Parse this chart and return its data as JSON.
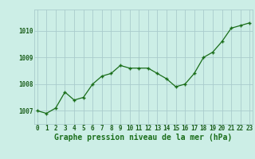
{
  "x": [
    0,
    1,
    2,
    3,
    4,
    5,
    6,
    7,
    8,
    9,
    10,
    11,
    12,
    13,
    14,
    15,
    16,
    17,
    18,
    19,
    20,
    21,
    22,
    23
  ],
  "y": [
    1007.0,
    1006.9,
    1007.1,
    1007.7,
    1007.4,
    1007.5,
    1008.0,
    1008.3,
    1008.4,
    1008.7,
    1008.6,
    1008.6,
    1008.6,
    1008.4,
    1008.2,
    1007.9,
    1008.0,
    1008.4,
    1009.0,
    1009.2,
    1009.6,
    1010.1,
    1010.2,
    1010.3
  ],
  "line_color": "#1a6e1a",
  "marker_color": "#1a6e1a",
  "bg_color": "#cceee6",
  "grid_color": "#aacccc",
  "title": "Graphe pression niveau de la mer (hPa)",
  "xlabel_ticks": [
    "0",
    "1",
    "2",
    "3",
    "4",
    "5",
    "6",
    "7",
    "8",
    "9",
    "10",
    "11",
    "12",
    "13",
    "14",
    "15",
    "16",
    "17",
    "18",
    "19",
    "20",
    "21",
    "22",
    "23"
  ],
  "yticks": [
    1007,
    1008,
    1009,
    1010
  ],
  "ylim": [
    1006.5,
    1010.8
  ],
  "xlim": [
    -0.3,
    23.3
  ],
  "title_fontsize": 7.0,
  "tick_fontsize": 5.5,
  "title_color": "#1a6e1a",
  "tick_color": "#1a5e1a"
}
